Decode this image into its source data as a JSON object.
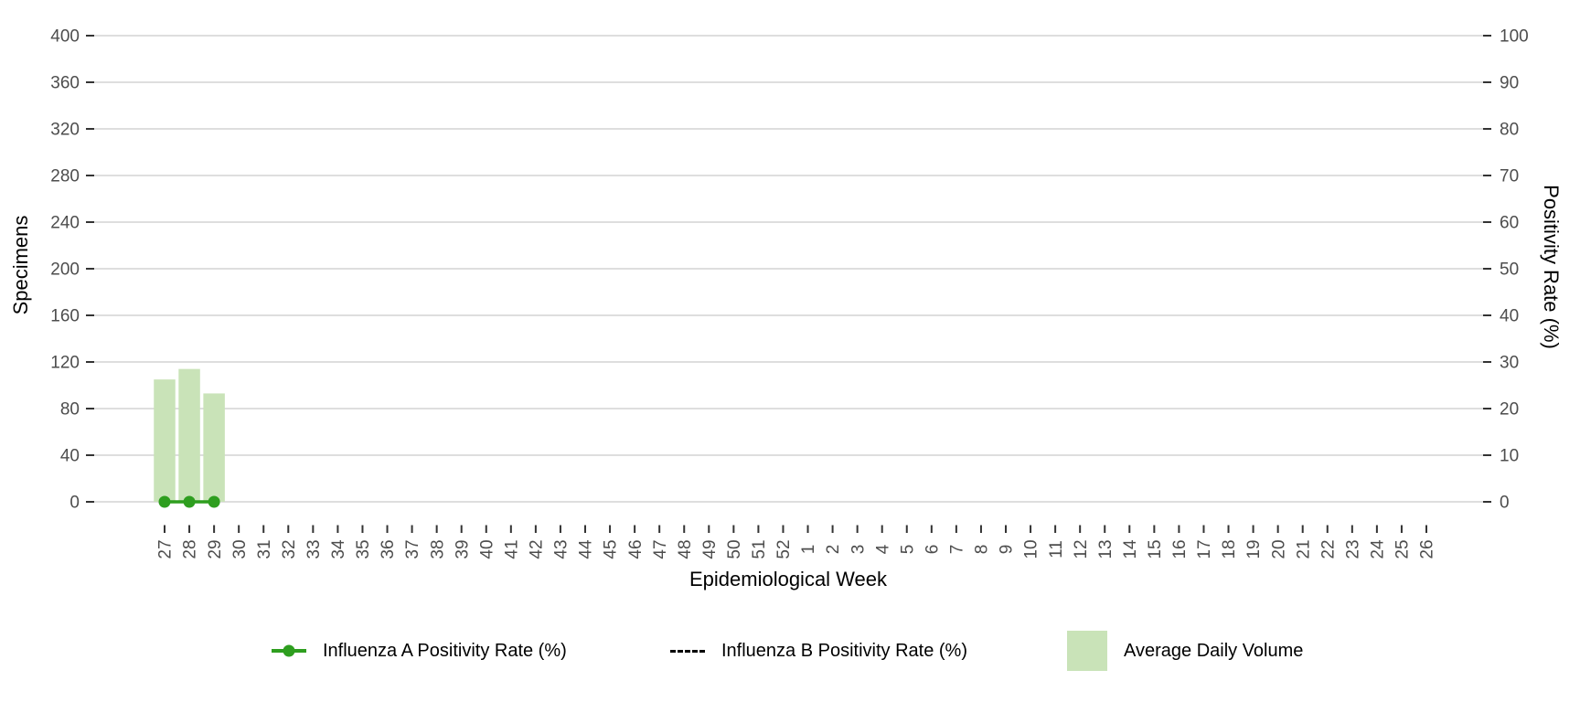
{
  "chart_data": {
    "type": "combo",
    "title": "",
    "xlabel": "Epidemiological Week",
    "x_categories": [
      "27",
      "28",
      "29",
      "30",
      "31",
      "32",
      "33",
      "34",
      "35",
      "36",
      "37",
      "38",
      "39",
      "40",
      "41",
      "42",
      "43",
      "44",
      "45",
      "46",
      "47",
      "48",
      "49",
      "50",
      "51",
      "52",
      "1",
      "2",
      "3",
      "4",
      "5",
      "6",
      "7",
      "8",
      "9",
      "10",
      "11",
      "12",
      "13",
      "14",
      "15",
      "16",
      "17",
      "18",
      "19",
      "20",
      "21",
      "22",
      "23",
      "24",
      "25",
      "26"
    ],
    "left_axis": {
      "label": "Specimens",
      "min": 0,
      "max": 400,
      "ticks": [
        0,
        40,
        80,
        120,
        160,
        200,
        240,
        280,
        320,
        360,
        400
      ]
    },
    "right_axis": {
      "label": "Positivity Rate (%)",
      "min": 0,
      "max": 100,
      "ticks": [
        0,
        10,
        20,
        30,
        40,
        50,
        60,
        70,
        80,
        90,
        100
      ]
    },
    "grid": "horizontal-only",
    "legend_position": "bottom",
    "series": [
      {
        "name": "Average Daily Volume",
        "slug": "average-daily-volume-bars",
        "type": "bar",
        "axis": "left",
        "color": "#c9e3b8",
        "data": {
          "27": 105,
          "28": 114,
          "29": 93
        }
      },
      {
        "name": "Influenza B Positivity Rate (%)",
        "slug": "influenza-b-line",
        "type": "line",
        "line_style": "dashed",
        "marker": "none",
        "axis": "right",
        "color": "#000000",
        "data": {},
        "note": "legend entry only; no data points visible on chart"
      },
      {
        "name": "Influenza A Positivity Rate (%)",
        "slug": "influenza-a-line",
        "type": "line",
        "line_style": "solid",
        "marker": "circle",
        "axis": "right",
        "color": "#2e9e1f",
        "data": {
          "27": 0,
          "28": 0,
          "29": 0
        }
      }
    ]
  },
  "legend": {
    "items": [
      {
        "label": "Influenza A Positivity Rate (%)",
        "symbol": "line-with-dot",
        "color": "#2e9e1f"
      },
      {
        "label": "Influenza B Positivity Rate (%)",
        "symbol": "dashed-line",
        "color": "#000000"
      },
      {
        "label": "Average Daily Volume",
        "symbol": "filled-square",
        "color": "#c9e3b8"
      }
    ]
  },
  "styles": {
    "background": "#ffffff",
    "grid_color": "#d9d9d9",
    "tick_color": "#333333",
    "tick_label_color": "#4d4d4d",
    "axis_title_color": "#000000",
    "legend_text_color": "#000000",
    "bar_color": "#c9e3b8",
    "line_a_color": "#2e9e1f",
    "line_b_color": "#000000"
  }
}
